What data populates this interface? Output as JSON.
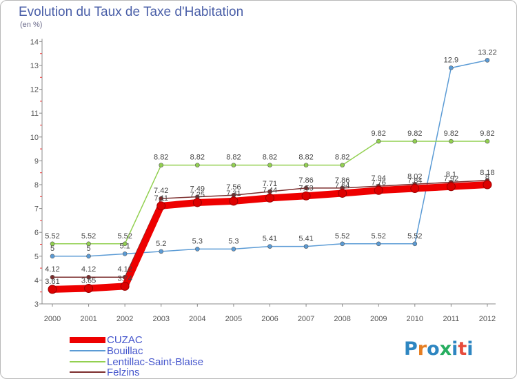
{
  "header": {
    "title": "Evolution du Taux de Taxe d'Habitation",
    "subtitle": "(en %)"
  },
  "chart_data": {
    "type": "line",
    "title": "Evolution du Taux de Taxe d'Habitation",
    "subtitle": "(en %)",
    "xlabel": "",
    "ylabel": "",
    "x": [
      "2000",
      "2001",
      "2002",
      "2003",
      "2004",
      "2005",
      "2006",
      "2007",
      "2008",
      "2009",
      "2010",
      "2011",
      "2012"
    ],
    "ylim": [
      3,
      14
    ],
    "yticks": [
      3,
      4,
      5,
      6,
      7,
      8,
      9,
      10,
      11,
      12,
      13,
      14
    ],
    "grid": false,
    "legend_position": "bottom-left",
    "series": [
      {
        "name": "CUZAC",
        "color": "#ee0000",
        "values": [
          3.61,
          3.65,
          3.74,
          7.11,
          7.25,
          7.31,
          7.44,
          7.53,
          7.64,
          7.76,
          7.84,
          7.92,
          8.0
        ],
        "labels": [
          "3.61",
          "3.65",
          "3.74",
          "7.11",
          "7.25",
          "7.31",
          "7.44",
          "7.53",
          "7.64",
          "7.76",
          "7.84",
          "7.92",
          "8"
        ]
      },
      {
        "name": "Bouillac",
        "color": "#5b9bd5",
        "values": [
          5,
          5,
          5.1,
          5.2,
          5.3,
          5.3,
          5.41,
          5.41,
          5.52,
          5.52,
          5.52,
          12.9,
          13.22
        ],
        "labels": [
          "5",
          "5",
          "5.1",
          "5.2",
          "5.3",
          "5.3",
          "5.41",
          "5.41",
          "5.52",
          "5.52",
          "5.52",
          "12.9",
          "13.22"
        ]
      },
      {
        "name": "Lentillac-Saint-Blaise",
        "color": "#92d050",
        "values": [
          5.52,
          5.52,
          5.52,
          8.82,
          8.82,
          8.82,
          8.82,
          8.82,
          8.82,
          9.82,
          9.82,
          9.82,
          9.82
        ],
        "labels": [
          "5.52",
          "5.52",
          "5.52",
          "8.82",
          "8.82",
          "8.82",
          "8.82",
          "8.82",
          "8.82",
          "9.82",
          "9.82",
          "9.82",
          "9.82"
        ]
      },
      {
        "name": "Felzins",
        "color": "#7b2c2c",
        "values": [
          4.12,
          4.12,
          4.12,
          7.42,
          7.49,
          7.56,
          7.71,
          7.86,
          7.86,
          7.94,
          8.02,
          8.1,
          8.18
        ],
        "labels": [
          "4.12",
          "4.12",
          "4.12",
          "7.42",
          "7.49",
          "7.56",
          "7.71",
          "7.86",
          "7.86",
          "7.94",
          "8.02",
          "8.1",
          "8.18"
        ]
      }
    ]
  },
  "legend": {
    "items": [
      {
        "label": "CUZAC",
        "color": "#ee0000"
      },
      {
        "label": "Bouillac",
        "color": "#5b9bd5"
      },
      {
        "label": "Lentillac-Saint-Blaise",
        "color": "#92d050"
      },
      {
        "label": "Felzins",
        "color": "#7b2c2c"
      }
    ]
  },
  "logo": {
    "text": "Proxiti",
    "letter_colors": [
      "#2e86c1",
      "#e67e22",
      "#2e86c1",
      "#27ae60",
      "#2e86c1",
      "#e74c3c",
      "#2e86c1"
    ]
  }
}
